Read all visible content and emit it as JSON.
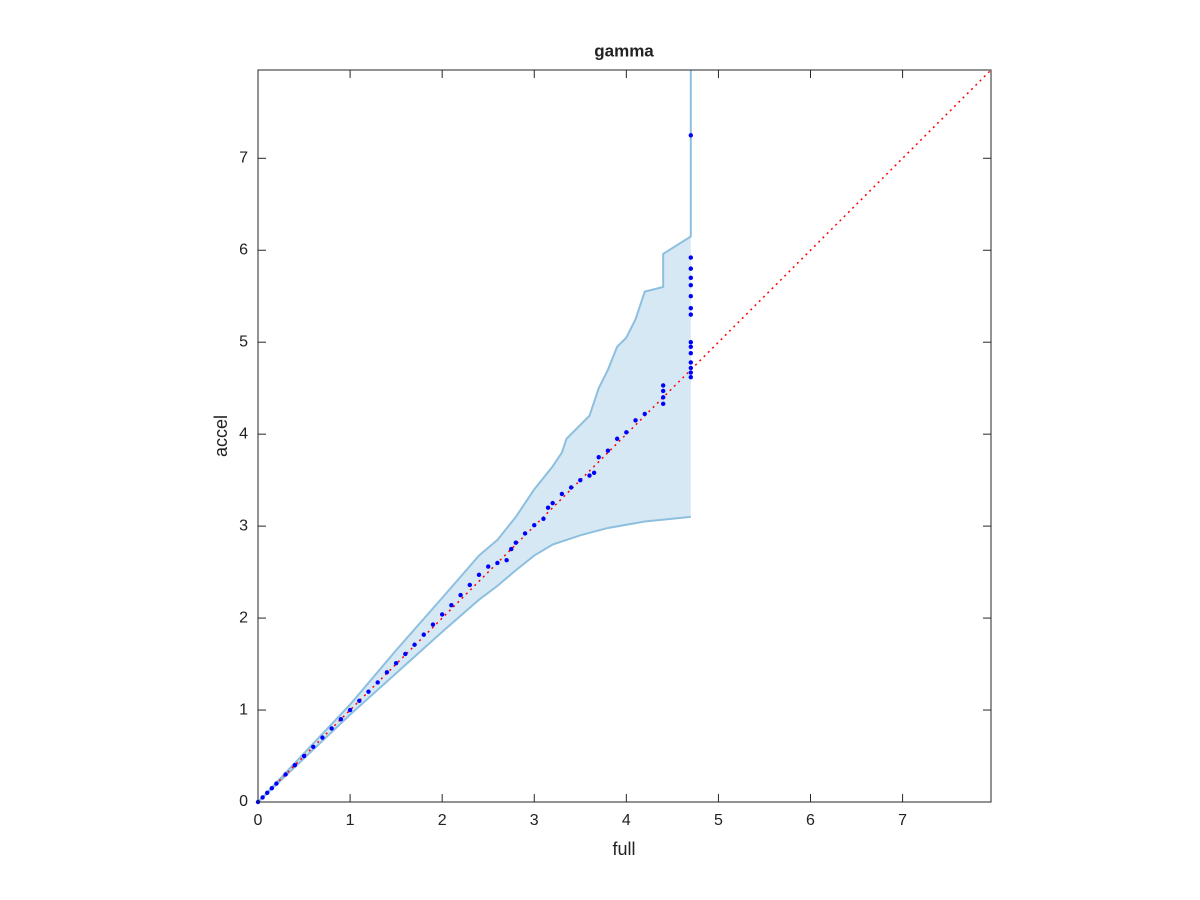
{
  "chart_data": {
    "type": "scatter",
    "title": "gamma",
    "xlabel": "full",
    "ylabel": "accel",
    "xlim": [
      0,
      7.96
    ],
    "ylim": [
      0,
      7.96
    ],
    "xticks": [
      0,
      1,
      2,
      3,
      4,
      5,
      6,
      7
    ],
    "yticks": [
      0,
      1,
      2,
      3,
      4,
      5,
      6,
      7
    ],
    "points": {
      "color": "#0000ff",
      "x": [
        0,
        0.05,
        0.1,
        0.15,
        0.2,
        0.3,
        0.4,
        0.5,
        0.6,
        0.7,
        0.8,
        0.9,
        1.0,
        1.1,
        1.2,
        1.3,
        1.4,
        1.5,
        1.6,
        1.7,
        1.8,
        1.9,
        2.0,
        2.1,
        2.2,
        2.3,
        2.4,
        2.5,
        2.6,
        2.7,
        2.75,
        2.8,
        2.9,
        3.0,
        3.1,
        3.15,
        3.2,
        3.3,
        3.4,
        3.5,
        3.6,
        3.65,
        3.7,
        3.8,
        3.9,
        4.0,
        4.1,
        4.2,
        4.4,
        4.4,
        4.4,
        4.4,
        4.7,
        4.7,
        4.7,
        4.7,
        4.7,
        4.7,
        4.7,
        4.7,
        4.7,
        4.7,
        4.7,
        4.7,
        4.7,
        4.7,
        4.7
      ],
      "y": [
        0,
        0.05,
        0.1,
        0.15,
        0.2,
        0.3,
        0.4,
        0.5,
        0.6,
        0.7,
        0.8,
        0.9,
        1.0,
        1.1,
        1.2,
        1.3,
        1.41,
        1.51,
        1.61,
        1.71,
        1.82,
        1.93,
        2.04,
        2.14,
        2.25,
        2.36,
        2.47,
        2.56,
        2.6,
        2.63,
        2.75,
        2.82,
        2.92,
        3.01,
        3.08,
        3.2,
        3.25,
        3.35,
        3.42,
        3.5,
        3.55,
        3.58,
        3.75,
        3.82,
        3.95,
        4.02,
        4.15,
        4.22,
        4.33,
        4.4,
        4.47,
        4.53,
        4.62,
        4.67,
        4.72,
        4.78,
        4.88,
        4.95,
        5.0,
        5.3,
        5.37,
        5.5,
        5.62,
        5.7,
        5.8,
        5.92,
        7.25
      ]
    },
    "reference": {
      "color": "#ff0000",
      "x": [
        0,
        7.96
      ],
      "y": [
        0,
        7.96
      ]
    },
    "band": {
      "color": "#8dbfdf",
      "fill": "#d6e8f4",
      "upper": {
        "x": [
          0,
          1,
          1.5,
          2,
          2.4,
          2.6,
          2.8,
          3.0,
          3.2,
          3.3,
          3.35,
          3.6,
          3.7,
          3.8,
          3.9,
          4.0,
          4.1,
          4.2,
          4.4,
          4.4,
          4.7,
          4.7
        ],
        "y": [
          0,
          1.06,
          1.65,
          2.22,
          2.68,
          2.85,
          3.1,
          3.4,
          3.65,
          3.8,
          3.95,
          4.2,
          4.5,
          4.7,
          4.95,
          5.05,
          5.25,
          5.55,
          5.6,
          5.96,
          6.15,
          7.96
        ]
      },
      "lower": {
        "x": [
          0,
          1,
          2,
          2.4,
          2.6,
          2.8,
          3.0,
          3.2,
          3.5,
          3.8,
          4.2,
          4.7
        ],
        "y": [
          0,
          0.95,
          1.85,
          2.2,
          2.35,
          2.52,
          2.68,
          2.8,
          2.9,
          2.98,
          3.05,
          3.1
        ]
      }
    }
  }
}
